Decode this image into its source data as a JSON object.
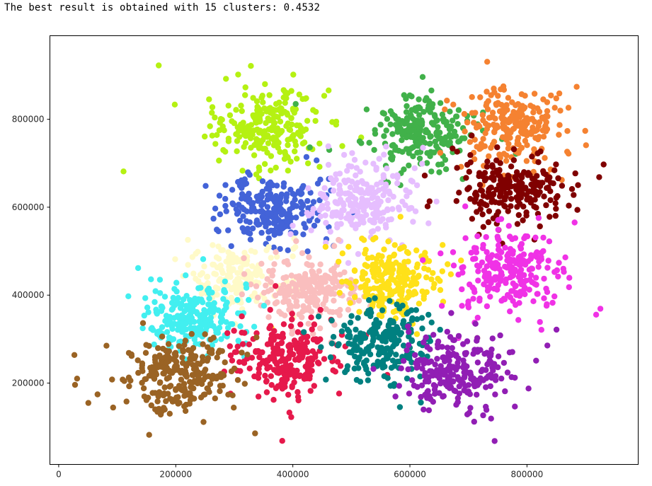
{
  "output": {
    "text": "The best result is obtained with 15 clusters: 0.4532"
  },
  "chart_data": {
    "type": "scatter",
    "title": "",
    "xlabel": "",
    "ylabel": "",
    "xlim": [
      -15000,
      990000
    ],
    "ylim": [
      15000,
      990000
    ],
    "xticks": [
      0,
      200000,
      400000,
      600000,
      800000
    ],
    "xtick_labels": [
      "0",
      "200000",
      "400000",
      "600000",
      "800000"
    ],
    "yticks": [
      200000,
      400000,
      600000,
      800000
    ],
    "ytick_labels": [
      "200000",
      "400000",
      "600000",
      "800000"
    ],
    "grid": false,
    "legend": "none",
    "clusters": [
      {
        "color": "#b5f112",
        "center": [
          355000,
          785000
        ],
        "spread": [
          45000,
          42000
        ],
        "count": 240
      },
      {
        "color": "#41b14a",
        "center": [
          610000,
          770000
        ],
        "spread": [
          45000,
          40000
        ],
        "count": 240
      },
      {
        "color": "#f58231",
        "center": [
          775000,
          785000
        ],
        "spread": [
          45000,
          40000
        ],
        "count": 230
      },
      {
        "color": "#800000",
        "center": [
          775000,
          640000
        ],
        "spread": [
          45000,
          35000
        ],
        "count": 230
      },
      {
        "color": "#4363d8",
        "center": [
          370000,
          595000
        ],
        "spread": [
          40000,
          35000
        ],
        "count": 230
      },
      {
        "color": "#e6beff",
        "center": [
          520000,
          610000
        ],
        "spread": [
          40000,
          45000
        ],
        "count": 230
      },
      {
        "color": "#fffac8",
        "center": [
          305000,
          440000
        ],
        "spread": [
          40000,
          40000
        ],
        "count": 170
      },
      {
        "color": "#fabebe",
        "center": [
          430000,
          410000
        ],
        "spread": [
          40000,
          35000
        ],
        "count": 230
      },
      {
        "color": "#ffe119",
        "center": [
          570000,
          435000
        ],
        "spread": [
          38000,
          40000
        ],
        "count": 230
      },
      {
        "color": "#f032e6",
        "center": [
          770000,
          455000
        ],
        "spread": [
          40000,
          45000
        ],
        "count": 240
      },
      {
        "color": "#42eff0",
        "center": [
          230000,
          350000
        ],
        "spread": [
          40000,
          35000
        ],
        "count": 230
      },
      {
        "color": "#e6194b",
        "center": [
          390000,
          255000
        ],
        "spread": [
          40000,
          40000
        ],
        "count": 240
      },
      {
        "color": "#008080",
        "center": [
          550000,
          290000
        ],
        "spread": [
          40000,
          40000
        ],
        "count": 230
      },
      {
        "color": "#911eb4",
        "center": [
          680000,
          225000
        ],
        "spread": [
          42000,
          45000
        ],
        "count": 230
      },
      {
        "color": "#9a6324",
        "center": [
          200000,
          215000
        ],
        "spread": [
          45000,
          40000
        ],
        "count": 250
      }
    ]
  }
}
